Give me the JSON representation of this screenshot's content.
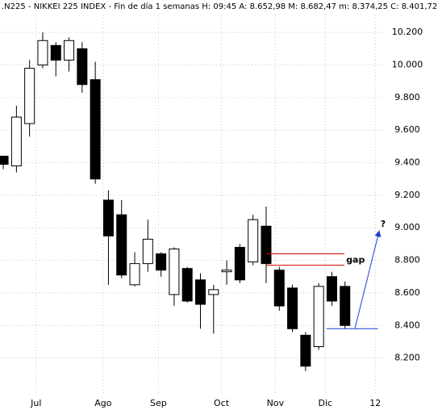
{
  "chart_data": {
    "type": "candlestick",
    "title": ".N225 - NIKKEI 225 INDEX - Fin de día 1 semanas  H: 09:45  A: 8.652,98  M: 8.682,47  m: 8.374,25  C: 8.401,72",
    "x": [
      0,
      1,
      2,
      3,
      4,
      5,
      6,
      7,
      8,
      9,
      10,
      11,
      12,
      13,
      14,
      15,
      16,
      17,
      18,
      19,
      20,
      21,
      22,
      23,
      24,
      25,
      26
    ],
    "open": [
      9440,
      9380,
      9640,
      10000,
      10120,
      10030,
      10100,
      9910,
      9170,
      9080,
      8650,
      8780,
      8840,
      8590,
      8750,
      8680,
      8590,
      8730,
      8880,
      8790,
      9010,
      8740,
      8630,
      8340,
      8270,
      8700,
      8640
    ],
    "close": [
      9390,
      9680,
      9980,
      10150,
      10030,
      10150,
      9880,
      9300,
      8950,
      8710,
      8780,
      8930,
      8740,
      8870,
      8550,
      8530,
      8620,
      8740,
      8680,
      9050,
      8780,
      8520,
      8380,
      8150,
      8640,
      8550,
      8400
    ],
    "high": [
      9440,
      9750,
      10030,
      10200,
      10140,
      10170,
      10140,
      10020,
      9230,
      9170,
      8850,
      9050,
      8850,
      8880,
      8760,
      8720,
      8650,
      8800,
      8900,
      9080,
      9130,
      8760,
      8650,
      8360,
      8660,
      8730,
      8670
    ],
    "low": [
      9360,
      9340,
      9560,
      9980,
      9930,
      9960,
      9830,
      9270,
      8650,
      8690,
      8640,
      8730,
      8700,
      8520,
      8540,
      8380,
      8350,
      8650,
      8660,
      8770,
      8660,
      8490,
      8360,
      8120,
      8250,
      8520,
      8380
    ],
    "xlim": [
      -0.25,
      28.9
    ],
    "xticks": [
      {
        "value": 2.5,
        "label": "Jul"
      },
      {
        "value": 7.6,
        "label": "Ago"
      },
      {
        "value": 11.8,
        "label": "Sep"
      },
      {
        "value": 16.6,
        "label": "Oct"
      },
      {
        "value": 20.7,
        "label": "Nov"
      },
      {
        "value": 24.5,
        "label": "Dic"
      },
      {
        "value": 28.3,
        "label": "12"
      }
    ],
    "ylim": [
      7970,
      10310
    ],
    "yticks": [
      {
        "value": 8200,
        "label": "8.200"
      },
      {
        "value": 8400,
        "label": "8.400"
      },
      {
        "value": 8600,
        "label": "8.600"
      },
      {
        "value": 8800,
        "label": "8.800"
      },
      {
        "value": 9000,
        "label": "9.000"
      },
      {
        "value": 9200,
        "label": "9.200"
      },
      {
        "value": 9400,
        "label": "9.400"
      },
      {
        "value": 9600,
        "label": "9.600"
      },
      {
        "value": 9800,
        "label": "9.800"
      },
      {
        "value": 10000,
        "label": "10.000"
      },
      {
        "value": 10200,
        "label": "10.200"
      }
    ],
    "grid": true,
    "up_color": "#ffffff",
    "down_color": "#000000",
    "annotations": [
      {
        "type": "hline",
        "y": 8840,
        "x": [
          20.0,
          25.95
        ],
        "color": "#d00000"
      },
      {
        "type": "hline",
        "y": 8770,
        "x": [
          20.0,
          25.95
        ],
        "color": "#d00000"
      },
      {
        "type": "text",
        "text": "gap",
        "x": 26.8,
        "y": 8800,
        "color": "#d00000"
      },
      {
        "type": "hline",
        "y": 8380,
        "x": [
          24.6,
          28.5
        ],
        "color": "#1a3fd0"
      },
      {
        "type": "arrow",
        "x": [
          26.75,
          28.6
        ],
        "y": [
          8380,
          8980
        ],
        "color": "#1a3fd0"
      },
      {
        "type": "text",
        "text": "?",
        "x": 28.9,
        "y": 9020,
        "color": "#1a3fd0"
      }
    ]
  }
}
